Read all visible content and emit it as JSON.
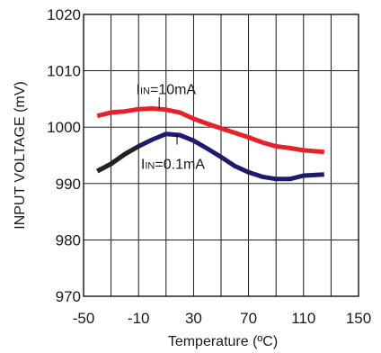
{
  "chart_data": {
    "type": "line",
    "xlabel": "Temperature (ºC)",
    "ylabel": "INPUT VOLTAGE (mV)",
    "xlim": [
      -50,
      150
    ],
    "ylim": [
      970,
      1020
    ],
    "xticks": [
      -50,
      -10,
      30,
      70,
      110,
      150
    ],
    "yticks": [
      970,
      980,
      990,
      1000,
      1010,
      1020
    ],
    "xtick_labels": [
      "-50",
      "-10",
      "30",
      "70",
      "110",
      "150"
    ],
    "ytick_labels": [
      "970",
      "980",
      "990",
      "1000",
      "1010",
      "1020"
    ],
    "x_grid": [
      -50,
      -30,
      -10,
      10,
      30,
      50,
      70,
      90,
      110,
      130,
      150
    ],
    "grid": true,
    "legend": "none",
    "series": [
      {
        "color": "#e8202a",
        "x": [
          -40,
          -30,
          -20,
          -10,
          0,
          10,
          20,
          30,
          40,
          50,
          60,
          70,
          80,
          90,
          100,
          110,
          125
        ],
        "y": [
          1002,
          1002.6,
          1002.8,
          1003.2,
          1003.3,
          1003.1,
          1002.6,
          1001.5,
          1000.6,
          999.8,
          999,
          998.2,
          997.3,
          996.6,
          996.3,
          995.9,
          995.6
        ]
      },
      {
        "color": "#1e1a6e",
        "start_color": "#222222",
        "x": [
          -40,
          -30,
          -20,
          -10,
          0,
          10,
          20,
          30,
          40,
          50,
          60,
          70,
          80,
          90,
          100,
          110,
          125
        ],
        "y": [
          992.2,
          993.5,
          995.2,
          996.6,
          997.8,
          998.8,
          998.6,
          997.6,
          996.2,
          994.7,
          993.1,
          992,
          991.2,
          990.8,
          990.8,
          991.4,
          991.6
        ]
      }
    ],
    "annotations": [
      {
        "main": "I",
        "sub": "IN",
        "rest": "=10mA",
        "x": 10,
        "y": 1006.8,
        "leader_x": 5,
        "leader_y": [
          1005.3,
          1003.3
        ]
      },
      {
        "main": "I",
        "sub": "IN",
        "rest": "=0.1mA",
        "x": 15,
        "y": 993.6,
        "leader_x": 18,
        "leader_y": [
          996.9,
          998.7
        ]
      }
    ]
  }
}
